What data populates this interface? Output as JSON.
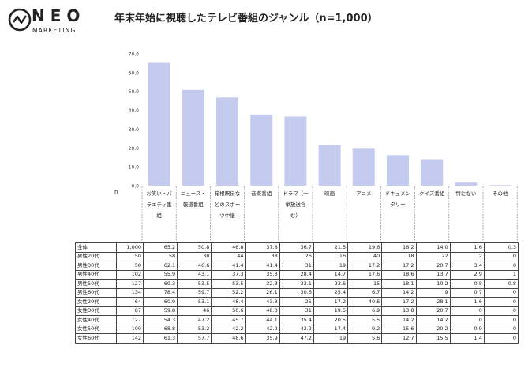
{
  "brand": {
    "name": "NEO",
    "sub": "MARKETING"
  },
  "title": "年末年始に視聴したテレビ番組のジャンル（n=1,000）",
  "n_label": "n",
  "chart_data": {
    "type": "bar",
    "title": "年末年始に視聴したテレビ番組のジャンル（n=1,000）",
    "categories": [
      "お笑い・バラエティ番組",
      "ニュース・報道番組",
      "箱根駅伝などのスポーツ中継",
      "音楽番組",
      "ドラマ（一挙放送含む）",
      "映画",
      "アニメ",
      "ドキュメンタリー",
      "クイズ番組",
      "特にない",
      "その他"
    ],
    "category_lines": [
      [
        "お笑い・バ",
        "ラエティ番",
        "組"
      ],
      [
        "ニュース・",
        "報道番組"
      ],
      [
        "箱根駅伝な",
        "どのスポー",
        "ツ中継"
      ],
      [
        "音楽番組"
      ],
      [
        "ドラマ（一",
        "挙放送含",
        "む）"
      ],
      [
        "映画"
      ],
      [
        "アニメ"
      ],
      [
        "ドキュメン",
        "タリー"
      ],
      [
        "クイズ番組"
      ],
      [
        "特にない"
      ],
      [
        "その他"
      ]
    ],
    "values": [
      65.2,
      50.8,
      46.8,
      37.8,
      36.7,
      21.5,
      19.6,
      16.2,
      14.0,
      1.6,
      0.3
    ],
    "ylim": [
      0,
      70
    ],
    "yticks": [
      "0.0",
      "10.0",
      "20.0",
      "30.0",
      "40.0",
      "50.0",
      "60.0",
      "70.0"
    ],
    "xlabel": "",
    "ylabel": "",
    "grid": false,
    "bar_color": "#c5cbee"
  },
  "table": {
    "rows": [
      {
        "label": "全体",
        "n": "1,000",
        "values": [
          "65.2",
          "50.8",
          "46.8",
          "37.8",
          "36.7",
          "21.5",
          "19.6",
          "16.2",
          "14.0",
          "1.6",
          "0.3"
        ]
      },
      {
        "label": "男性20代",
        "n": "50",
        "values": [
          "58",
          "38",
          "44",
          "38",
          "26",
          "16",
          "40",
          "18",
          "22",
          "2",
          "0"
        ]
      },
      {
        "label": "男性30代",
        "n": "58",
        "values": [
          "62.1",
          "46.6",
          "41.4",
          "41.4",
          "31",
          "19",
          "17.2",
          "17.2",
          "20.7",
          "3.4",
          "0"
        ]
      },
      {
        "label": "男性40代",
        "n": "102",
        "values": [
          "55.9",
          "43.1",
          "37.3",
          "35.3",
          "28.4",
          "14.7",
          "17.6",
          "18.6",
          "13.7",
          "2.9",
          "1"
        ]
      },
      {
        "label": "男性50代",
        "n": "127",
        "values": [
          "69.3",
          "53.5",
          "53.5",
          "32.3",
          "33.1",
          "23.6",
          "15",
          "18.1",
          "10.2",
          "0.8",
          "0.8"
        ]
      },
      {
        "label": "男性60代",
        "n": "134",
        "values": [
          "78.4",
          "59.7",
          "52.2",
          "26.1",
          "30.6",
          "25.4",
          "6.7",
          "14.2",
          "9",
          "0.7",
          "0"
        ]
      },
      {
        "label": "女性20代",
        "n": "64",
        "values": [
          "60.9",
          "53.1",
          "48.4",
          "43.8",
          "25",
          "17.2",
          "40.6",
          "17.2",
          "28.1",
          "1.6",
          "0"
        ]
      },
      {
        "label": "女性30代",
        "n": "87",
        "values": [
          "59.8",
          "46",
          "50.6",
          "48.3",
          "31",
          "19.5",
          "6.9",
          "13.8",
          "20.7",
          "0",
          "0"
        ]
      },
      {
        "label": "女性40代",
        "n": "127",
        "values": [
          "54.3",
          "47.2",
          "45.7",
          "44.1",
          "35.4",
          "20.5",
          "5.5",
          "14.2",
          "14.2",
          "0",
          "0"
        ]
      },
      {
        "label": "女性50代",
        "n": "109",
        "values": [
          "68.8",
          "53.2",
          "42.2",
          "42.2",
          "42.2",
          "17.4",
          "9.2",
          "15.6",
          "20.2",
          "0.9",
          "0"
        ]
      },
      {
        "label": "女性60代",
        "n": "142",
        "values": [
          "61.3",
          "57.7",
          "48.6",
          "35.9",
          "47.2",
          "19",
          "5.6",
          "12.7",
          "15.5",
          "1.4",
          "0"
        ]
      }
    ]
  }
}
